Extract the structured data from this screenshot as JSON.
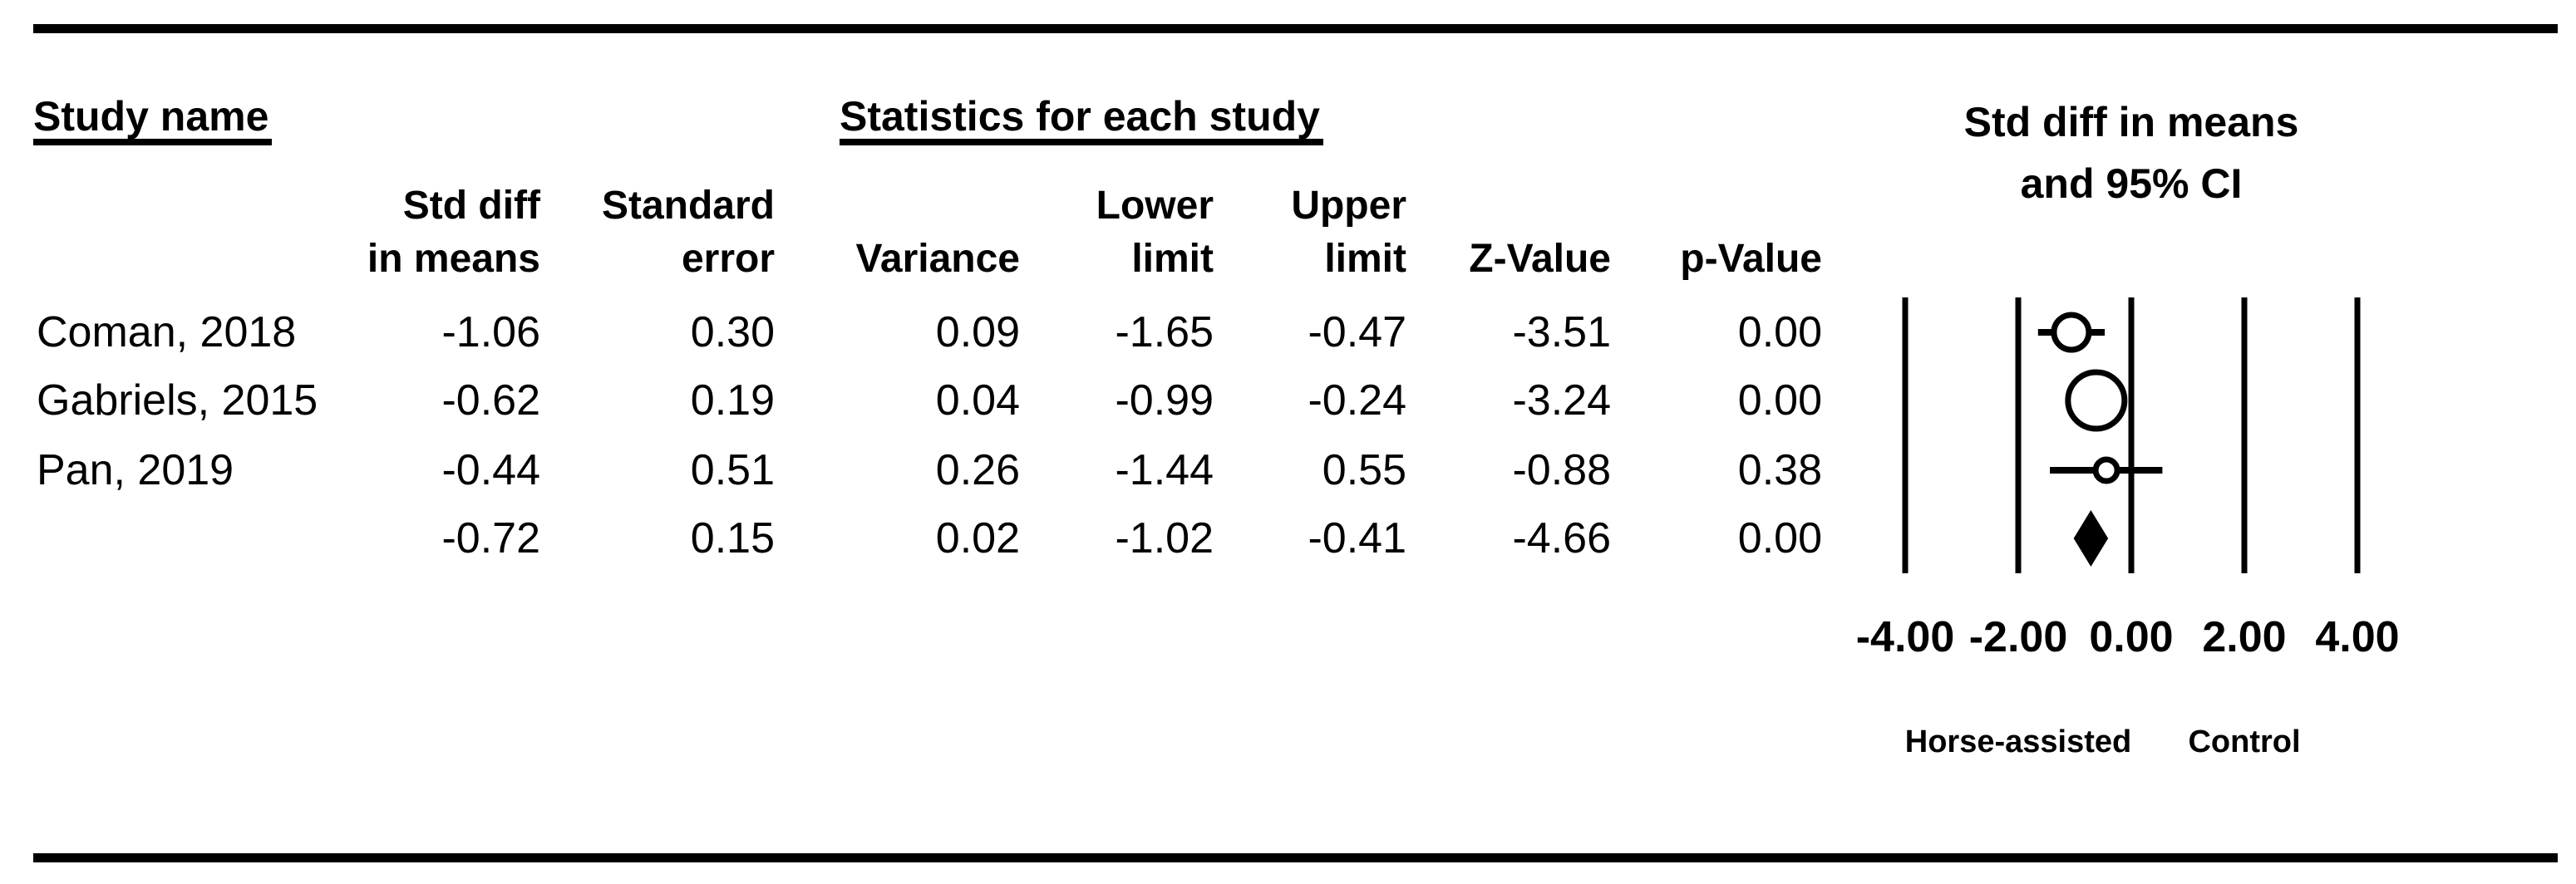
{
  "figure": {
    "left_title": "Study name",
    "center_title": "Statistics for each study",
    "plot_title_line1": "Std diff in means",
    "plot_title_line2": "and 95% CI"
  },
  "table": {
    "columns": [
      {
        "line1": "Std diff",
        "line2": "in means"
      },
      {
        "line1": "Standard",
        "line2": "error"
      },
      {
        "line1": "",
        "line2": "Variance"
      },
      {
        "line1": "Lower",
        "line2": "limit"
      },
      {
        "line1": "Upper",
        "line2": "limit"
      },
      {
        "line1": "",
        "line2": "Z-Value"
      },
      {
        "line1": "",
        "line2": "p-Value"
      }
    ],
    "rows": [
      {
        "study": "Coman, 2018",
        "std_diff": "-1.06",
        "std_err": "0.30",
        "variance": "0.09",
        "lower": "-1.65",
        "upper": "-0.47",
        "z": "-3.51",
        "p": "0.00"
      },
      {
        "study": "Gabriels, 2015",
        "std_diff": "-0.62",
        "std_err": "0.19",
        "variance": "0.04",
        "lower": "-0.99",
        "upper": "-0.24",
        "z": "-3.24",
        "p": "0.00"
      },
      {
        "study": "Pan, 2019",
        "std_diff": "-0.44",
        "std_err": "0.51",
        "variance": "0.26",
        "lower": "-1.44",
        "upper": "0.55",
        "z": "-0.88",
        "p": "0.38"
      },
      {
        "study": "",
        "std_diff": "-0.72",
        "std_err": "0.15",
        "variance": "0.02",
        "lower": "-1.02",
        "upper": "-0.41",
        "z": "-4.66",
        "p": "0.00"
      }
    ]
  },
  "chart_data": {
    "type": "forest",
    "title": "Std diff in means and 95% CI",
    "effect_measure": "Std diff in means",
    "xlim": [
      -4,
      4
    ],
    "x_ticks": [
      -4,
      -2,
      0,
      2,
      4
    ],
    "x_tick_labels": [
      "-4.00",
      "-2.00",
      "0.00",
      "2.00",
      "4.00"
    ],
    "group_labels": {
      "left": "Horse-assisted",
      "right": "Control"
    },
    "studies": [
      {
        "name": "Coman, 2018",
        "mean": -1.06,
        "se": 0.3,
        "variance": 0.09,
        "lower": -1.65,
        "upper": -0.47,
        "z": -3.51,
        "p": 0.0,
        "marker": "circle",
        "marker_radius": 21
      },
      {
        "name": "Gabriels, 2015",
        "mean": -0.62,
        "se": 0.19,
        "variance": 0.04,
        "lower": -0.99,
        "upper": -0.24,
        "z": -3.24,
        "p": 0.0,
        "marker": "circle",
        "marker_radius": 34
      },
      {
        "name": "Pan, 2019",
        "mean": -0.44,
        "se": 0.51,
        "variance": 0.26,
        "lower": -1.44,
        "upper": 0.55,
        "z": -0.88,
        "p": 0.38,
        "marker": "circle",
        "marker_radius": 13
      },
      {
        "name": "",
        "mean": -0.72,
        "se": 0.15,
        "variance": 0.02,
        "lower": -1.02,
        "upper": -0.41,
        "z": -4.66,
        "p": 0.0,
        "marker": "diamond",
        "diamond_half_height": 34
      }
    ]
  }
}
